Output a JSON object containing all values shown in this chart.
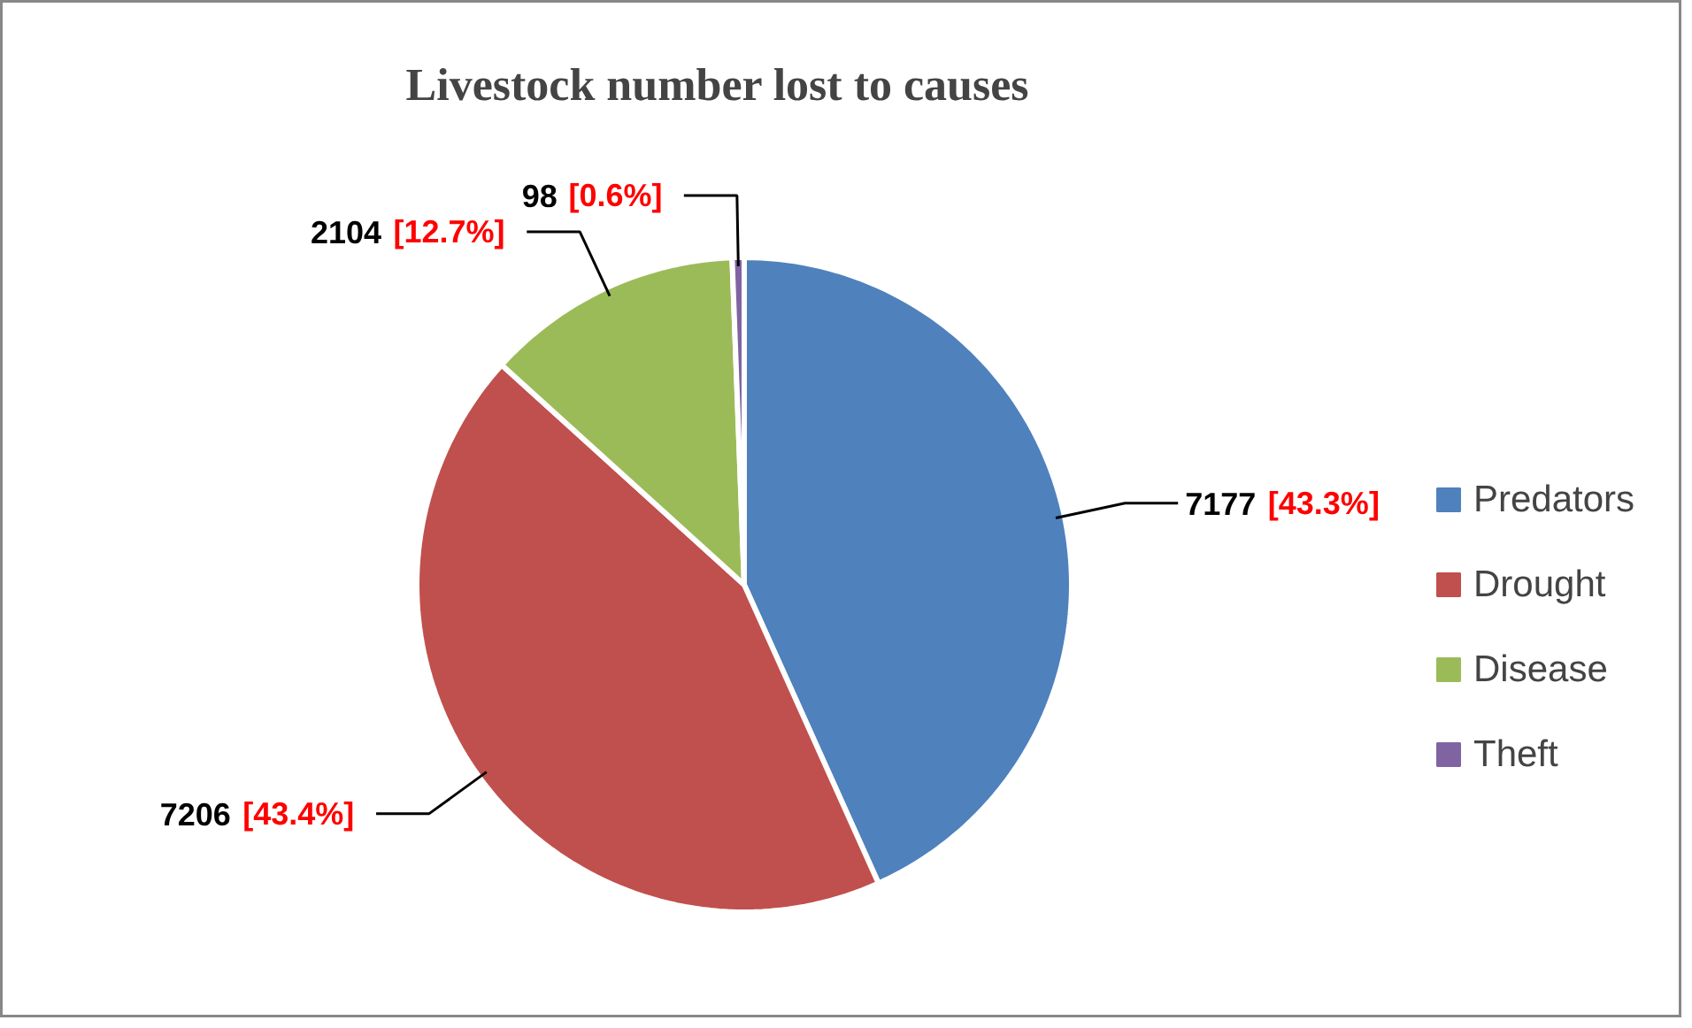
{
  "chart_data": {
    "type": "pie",
    "title": "Livestock number lost to causes",
    "categories": [
      "Predators",
      "Drought",
      "Disease",
      "Theft"
    ],
    "values": [
      7177,
      7206,
      2104,
      98
    ],
    "colors": [
      "#4f81bd",
      "#c0504d",
      "#9bbb59",
      "#8064a2"
    ],
    "value_labels": [
      "7177 [43.3%]",
      "7206 [43.4%]",
      "2104 [12.7%]",
      "98 [0.6%]"
    ],
    "legend": "right"
  }
}
